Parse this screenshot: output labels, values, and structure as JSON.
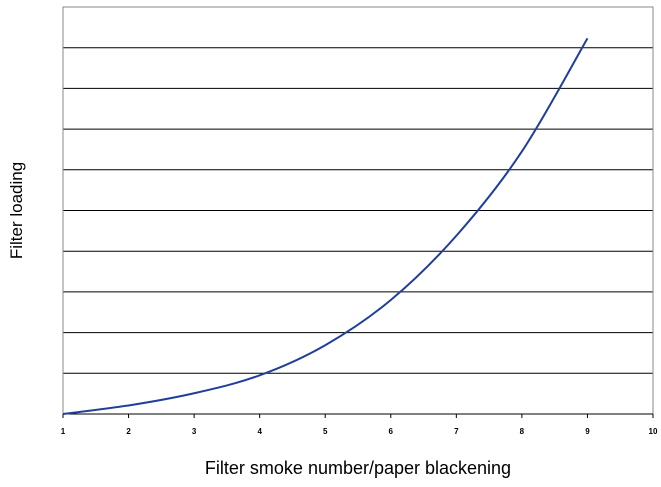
{
  "chart_data": {
    "type": "line",
    "title": "",
    "xlabel": "Filter smoke number/paper blackening",
    "ylabel": "Filter loading",
    "xlim": [
      1,
      10
    ],
    "ylim": [
      0,
      10
    ],
    "x_ticks": [
      "1",
      "2",
      "3",
      "4",
      "5",
      "6",
      "7",
      "8",
      "9",
      "10"
    ],
    "y_gridlines": 9,
    "y_tick_labels_shown": false,
    "grid": "horizontal",
    "legend": "none",
    "series": [
      {
        "color": "#1f3f99",
        "x": [
          1,
          2,
          3,
          4,
          5,
          6,
          7,
          8,
          9
        ],
        "y": [
          0.0,
          0.21,
          0.51,
          0.95,
          1.69,
          2.8,
          4.38,
          6.45,
          9.23
        ]
      }
    ]
  }
}
